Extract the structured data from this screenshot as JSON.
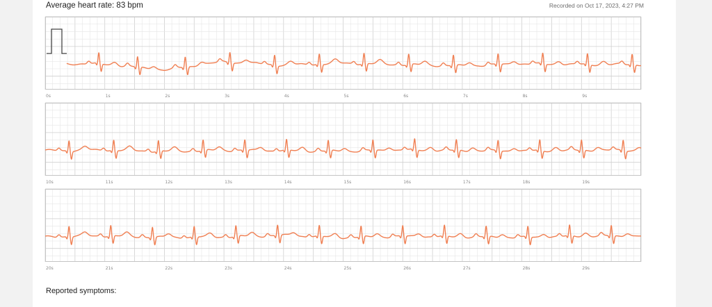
{
  "header": {
    "avg_heart_rate": "Average heart rate: 83 bpm",
    "recorded_on": "Recorded on Oct 17, 2023, 4:27 PM"
  },
  "footer": {
    "symptoms_label": "Reported symptoms:"
  },
  "colors": {
    "trace": "#f07f52",
    "grid_minor": "#e6e6e6",
    "grid_major": "#cfcfcf",
    "calibration": "#444444"
  },
  "chart_data": {
    "type": "line",
    "title": "",
    "xlabel": "",
    "ylabel": "",
    "strip_seconds": 10,
    "grid": true,
    "calibration_pulse": true,
    "strips": [
      {
        "tick_labels": [
          "0s",
          "1s",
          "2s",
          "3s",
          "4s",
          "5s",
          "6s",
          "7s",
          "8s",
          "9s"
        ],
        "beats": [
          0.9,
          1.55,
          2.35,
          3.1,
          3.85,
          4.6,
          5.35,
          6.1,
          6.85,
          7.6,
          8.35,
          9.1,
          9.85
        ],
        "wander": [
          2,
          0.5,
          -8,
          4,
          -1,
          2,
          0,
          -2,
          1,
          0
        ]
      },
      {
        "tick_labels": [
          "10s",
          "11s",
          "12s",
          "13s",
          "14s",
          "15s",
          "16s",
          "17s",
          "18s",
          "19s"
        ],
        "beats": [
          10.4,
          11.15,
          11.9,
          12.65,
          13.35,
          14.05,
          14.75,
          15.5,
          16.2,
          16.9,
          17.6,
          18.3,
          19.0,
          19.7
        ],
        "wander": [
          0,
          1,
          -1,
          0.5,
          0,
          -1,
          1,
          0,
          -0.5,
          0.5
        ]
      },
      {
        "tick_labels": [
          "20s",
          "21s",
          "22s",
          "23s",
          "24s",
          "25s",
          "26s",
          "27s",
          "28s",
          "29s"
        ],
        "beats": [
          20.4,
          21.1,
          21.8,
          22.5,
          23.2,
          23.9,
          24.6,
          25.3,
          26.0,
          26.7,
          27.4,
          28.1,
          28.8,
          29.5
        ],
        "wander": [
          0,
          1.5,
          -1,
          0,
          2,
          -1,
          0.5,
          0,
          -1,
          1
        ]
      }
    ]
  }
}
